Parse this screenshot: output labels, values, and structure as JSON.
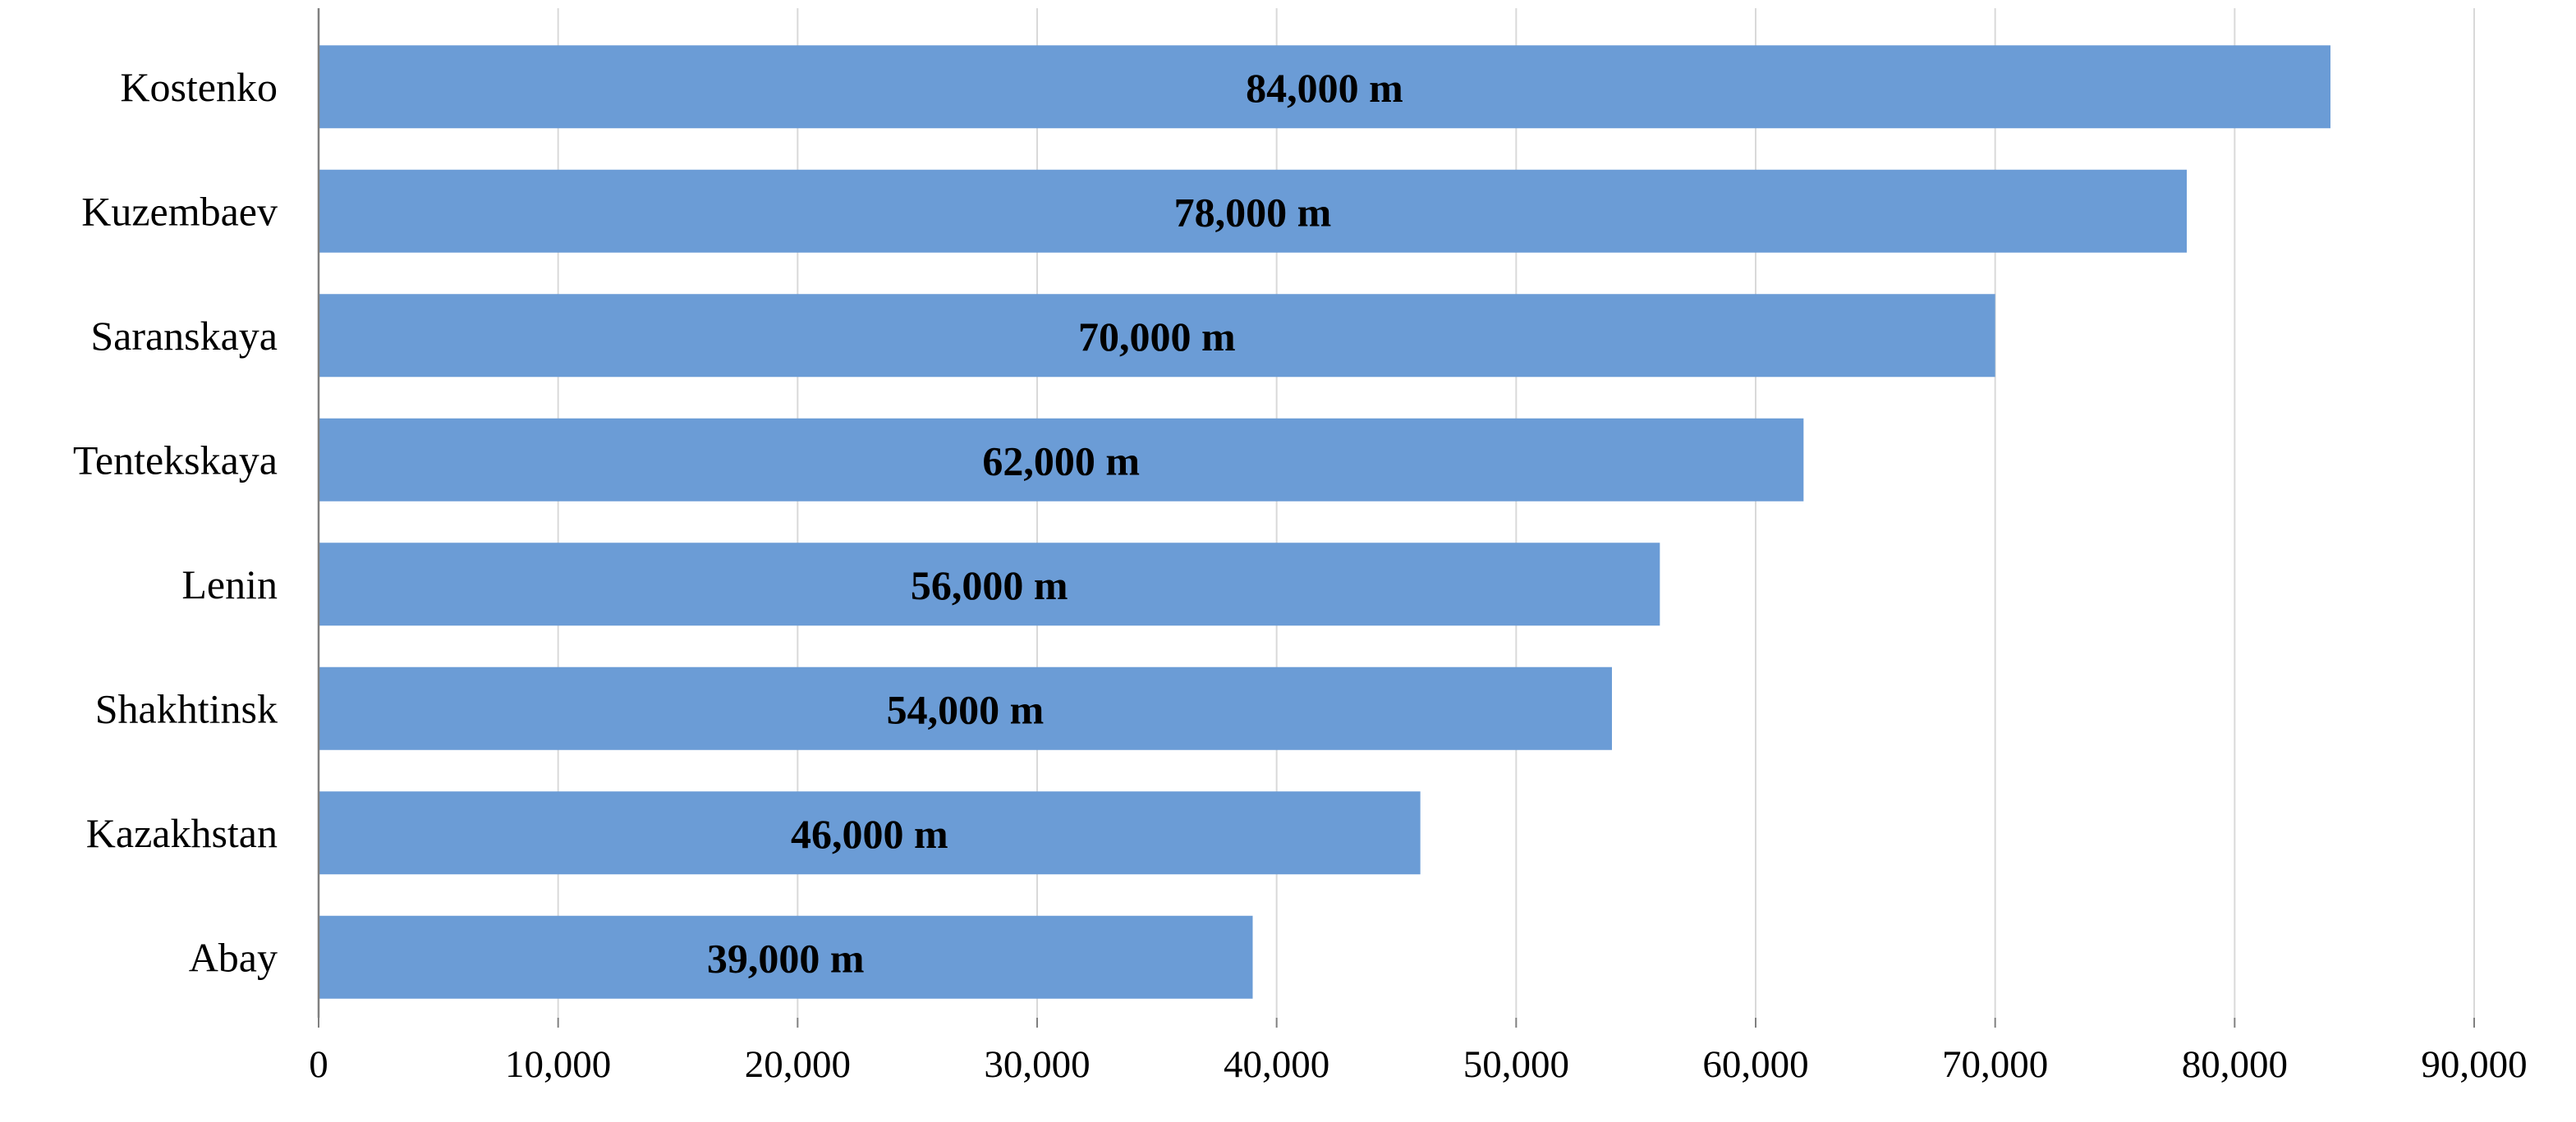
{
  "chart_data": {
    "type": "bar",
    "orientation": "horizontal",
    "categories": [
      "Kostenko",
      "Kuzembaev",
      "Saranskaya",
      "Tentekskaya",
      "Lenin",
      "Shakhtinsk",
      "Kazakhstan",
      "Abay"
    ],
    "values": [
      84000,
      78000,
      70000,
      62000,
      56000,
      54000,
      46000,
      39000
    ],
    "data_labels": [
      "84,000 m",
      "78,000 m",
      "70,000 m",
      "62,000 m",
      "56,000 m",
      "54,000 m",
      "46,000 m",
      "39,000 m"
    ],
    "title": "",
    "xlabel": "",
    "ylabel": "",
    "xlim": [
      0,
      90000
    ],
    "x_ticks": [
      0,
      10000,
      20000,
      30000,
      40000,
      50000,
      60000,
      70000,
      80000,
      90000
    ],
    "x_tick_labels": [
      "0",
      "10,000",
      "20,000",
      "30,000",
      "40,000",
      "50,000",
      "60,000",
      "70,000",
      "80,000",
      "90,000"
    ],
    "grid": "vertical",
    "legend": "none",
    "colors": {
      "bar": "#6b9cd6",
      "grid": "#d9d9d9",
      "axis": "#808080"
    }
  }
}
